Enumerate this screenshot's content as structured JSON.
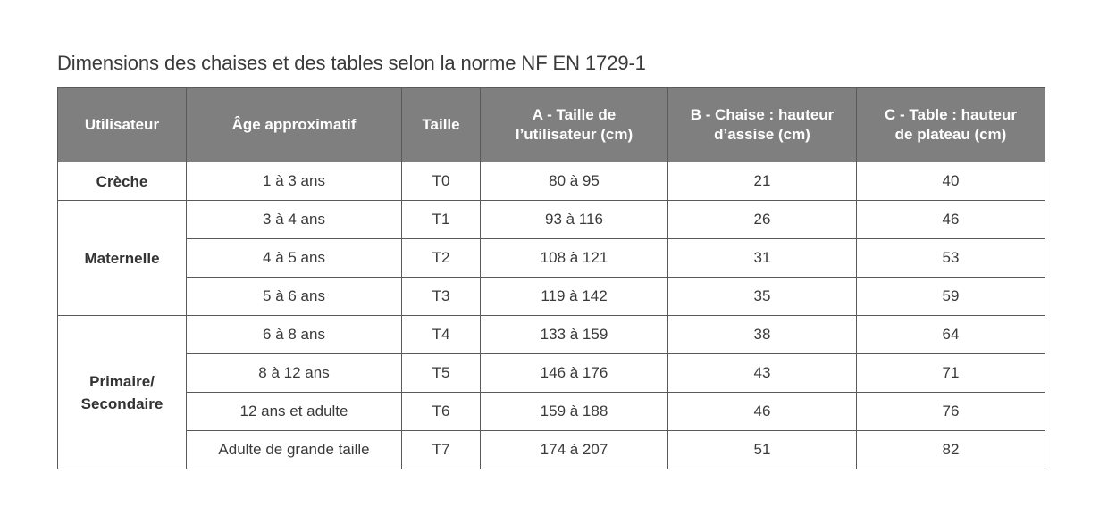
{
  "caption": "Dimensions des chaises et des tables selon la norme NF EN 1729-1",
  "headers": {
    "user": "Utilisateur",
    "age": "Âge approximatif",
    "size": "Taille",
    "a_line1": "A - Taille de",
    "a_line2": "l’utilisateur (cm)",
    "b_line1": "B - Chaise : hauteur",
    "b_line2": "d’assise (cm)",
    "c_line1": "C - Table : hauteur",
    "c_line2": "de plateau (cm)"
  },
  "groups": {
    "creche": "Crèche",
    "maternelle": "Maternelle",
    "primaire_line1": "Primaire/",
    "primaire_line2": "Secondaire"
  },
  "rows": [
    {
      "age": "1 à 3 ans",
      "size": "T0",
      "a": "80 à 95",
      "b": "21",
      "c": "40"
    },
    {
      "age": "3 à 4 ans",
      "size": "T1",
      "a": "93 à 116",
      "b": "26",
      "c": "46"
    },
    {
      "age": "4 à 5 ans",
      "size": "T2",
      "a": "108 à 121",
      "b": "31",
      "c": "53"
    },
    {
      "age": "5 à 6 ans",
      "size": "T3",
      "a": "119 à 142",
      "b": "35",
      "c": "59"
    },
    {
      "age": "6 à 8 ans",
      "size": "T4",
      "a": "133 à 159",
      "b": "38",
      "c": "64"
    },
    {
      "age": "8 à 12 ans",
      "size": "T5",
      "a": "146 à 176",
      "b": "43",
      "c": "71"
    },
    {
      "age": "12 ans et adulte",
      "size": "T6",
      "a": "159 à 188",
      "b": "46",
      "c": "76"
    },
    {
      "age": "Adulte de grande taille",
      "size": "T7",
      "a": "174 à 207",
      "b": "51",
      "c": "82"
    }
  ]
}
